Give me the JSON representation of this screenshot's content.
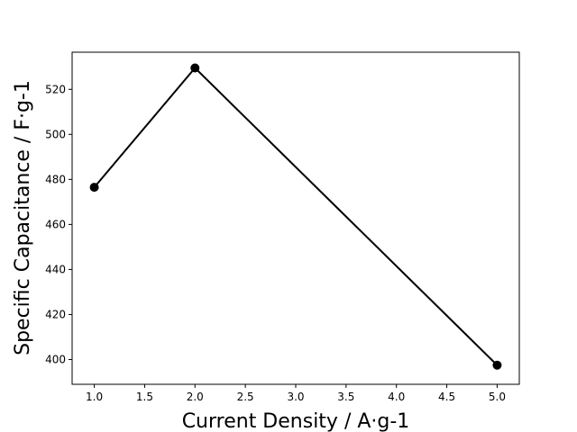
{
  "chart_data": {
    "type": "line",
    "title": "",
    "xlabel": "Current Density / A·g-1",
    "ylabel": "Specific Capacitance / F·g-1",
    "xlim": [
      0.78,
      5.22
    ],
    "ylim": [
      389,
      536.5
    ],
    "x_ticks": [
      1.0,
      1.5,
      2.0,
      2.5,
      3.0,
      3.5,
      4.0,
      4.5,
      5.0
    ],
    "x_tick_labels": [
      "1.0",
      "1.5",
      "2.0",
      "2.5",
      "3.0",
      "3.5",
      "4.0",
      "4.5",
      "5.0"
    ],
    "y_ticks": [
      400,
      420,
      440,
      460,
      480,
      500,
      520
    ],
    "y_tick_labels": [
      "400",
      "420",
      "440",
      "460",
      "480",
      "500",
      "520"
    ],
    "grid": false,
    "legend": "none",
    "series": [
      {
        "color": "#000000",
        "marker": "circle",
        "x": [
          1,
          2,
          5
        ],
        "y": [
          476.5,
          529.5,
          397.5
        ]
      }
    ]
  }
}
